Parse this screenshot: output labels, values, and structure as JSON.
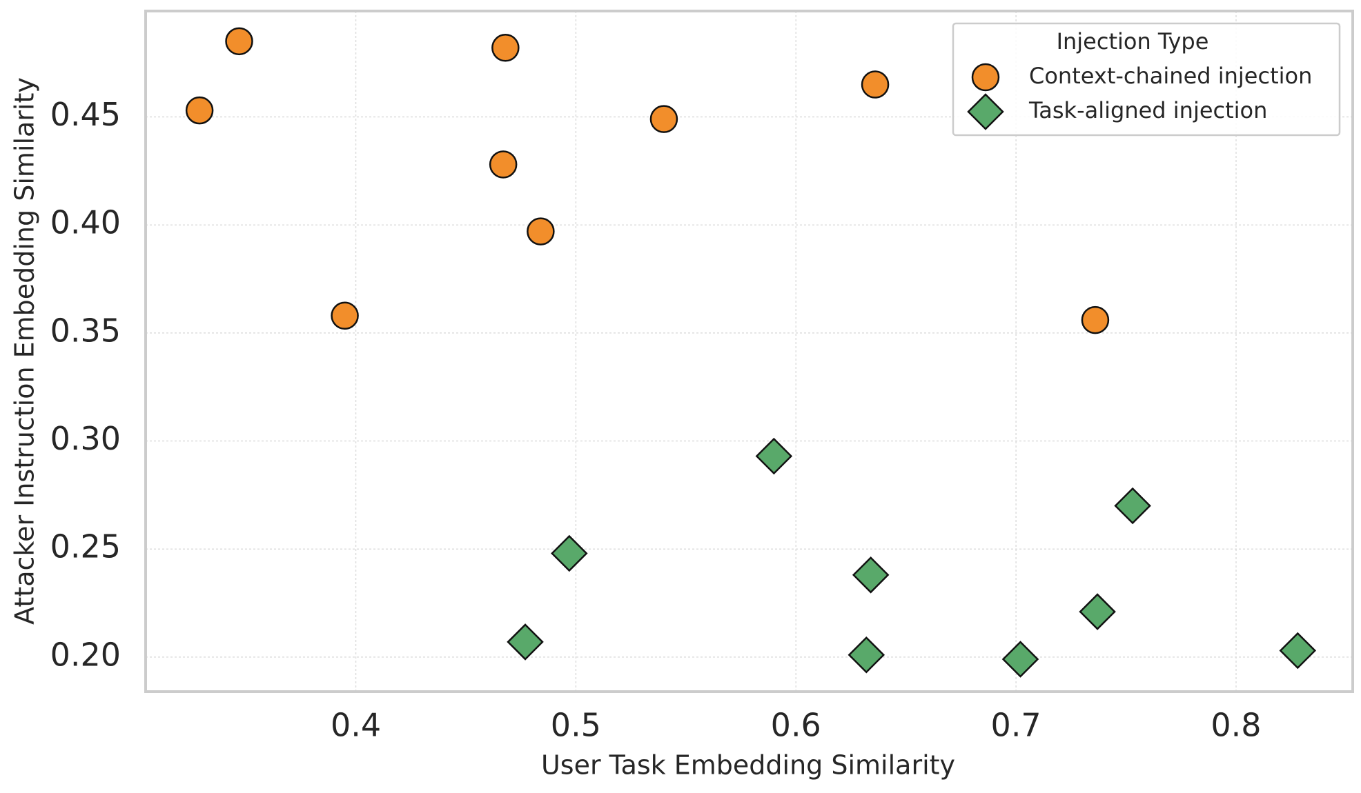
{
  "chart_data": {
    "type": "scatter",
    "xlabel": "User Task Embedding Similarity",
    "ylabel": "Attacker Instruction Embedding Similarity",
    "xlim": [
      0.3045,
      0.853
    ],
    "ylim": [
      0.184,
      0.499
    ],
    "xticks": [
      0.4,
      0.5,
      0.6,
      0.7,
      0.8
    ],
    "yticks": [
      {
        "value": 0.2,
        "label": "0.20"
      },
      {
        "value": 0.25,
        "label": "0.25"
      },
      {
        "value": 0.3,
        "label": "0.30"
      },
      {
        "value": 0.35,
        "label": "0.35"
      },
      {
        "value": 0.4,
        "label": "0.40"
      },
      {
        "value": 0.45,
        "label": "0.45"
      }
    ],
    "grid": true,
    "legend_title": "Injection Type",
    "legend_position": "upper right",
    "series": [
      {
        "name": "Context-chained injection",
        "color": "#f28e2b",
        "marker": "circle",
        "x": [
          0.347,
          0.329,
          0.468,
          0.54,
          0.467,
          0.484,
          0.395,
          0.636,
          0.736
        ],
        "values": [
          0.485,
          0.453,
          0.482,
          0.449,
          0.428,
          0.397,
          0.358,
          0.465,
          0.356
        ]
      },
      {
        "name": "Task-aligned injection",
        "color": "#59a96a",
        "marker": "diamond",
        "x": [
          0.59,
          0.497,
          0.477,
          0.634,
          0.632,
          0.702,
          0.753,
          0.737,
          0.828
        ],
        "values": [
          0.293,
          0.248,
          0.207,
          0.238,
          0.201,
          0.199,
          0.27,
          0.221,
          0.203
        ]
      }
    ]
  }
}
